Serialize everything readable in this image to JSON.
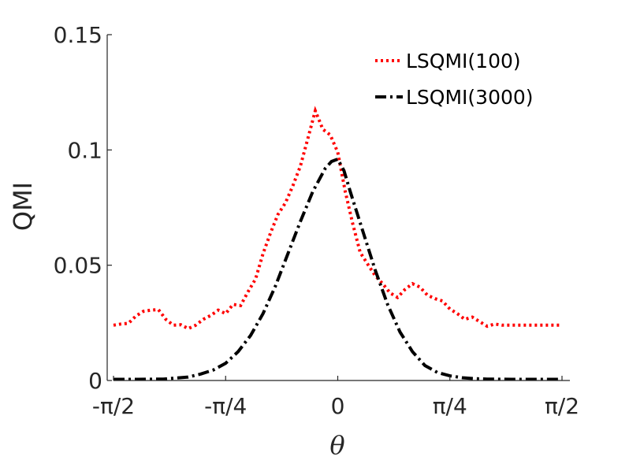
{
  "chart_data": {
    "type": "line",
    "title": "",
    "xlabel": "θ",
    "ylabel": "QMI",
    "xlim": [
      -1.5708,
      1.5708
    ],
    "ylim": [
      0,
      0.15
    ],
    "grid": false,
    "legend_position": "top-right",
    "x_ticks": [
      {
        "value": -1.5708,
        "label": "-π/2"
      },
      {
        "value": -0.7854,
        "label": "-π/4"
      },
      {
        "value": 0,
        "label": "0"
      },
      {
        "value": 0.7854,
        "label": "π/4"
      },
      {
        "value": 1.5708,
        "label": "π/2"
      }
    ],
    "y_ticks": [
      {
        "value": 0,
        "label": "0"
      },
      {
        "value": 0.05,
        "label": "0.05"
      },
      {
        "value": 0.1,
        "label": "0.1"
      },
      {
        "value": 0.15,
        "label": "0.15"
      }
    ],
    "series": [
      {
        "name": "LSQMI(100)",
        "color": "#ff0000",
        "line_style": "dotted",
        "x": [
          -1.5708,
          -1.5184,
          -1.4661,
          -1.4137,
          -1.3614,
          -1.309,
          -1.2566,
          -1.2043,
          -1.1519,
          -1.0996,
          -1.0472,
          -0.9948,
          -0.9425,
          -0.8901,
          -0.8378,
          -0.7854,
          -0.733,
          -0.6807,
          -0.6283,
          -0.576,
          -0.5236,
          -0.4712,
          -0.4189,
          -0.3665,
          -0.3142,
          -0.2618,
          -0.2094,
          -0.1571,
          -0.1047,
          -0.0524,
          0,
          0.0524,
          0.1047,
          0.1571,
          0.2094,
          0.2618,
          0.3142,
          0.3665,
          0.4189,
          0.4712,
          0.5236,
          0.576,
          0.6283,
          0.6807,
          0.733,
          0.7854,
          0.8378,
          0.8901,
          0.9425,
          0.9948,
          1.0472,
          1.0996,
          1.1519,
          1.2043,
          1.2566,
          1.309,
          1.3614,
          1.4137,
          1.4661,
          1.5184,
          1.5708
        ],
        "y": [
          0.024,
          0.0245,
          0.0248,
          0.028,
          0.03,
          0.0305,
          0.0308,
          0.0265,
          0.024,
          0.0242,
          0.0225,
          0.024,
          0.0265,
          0.0282,
          0.0305,
          0.029,
          0.033,
          0.0325,
          0.0385,
          0.044,
          0.055,
          0.064,
          0.072,
          0.077,
          0.0845,
          0.093,
          0.105,
          0.117,
          0.109,
          0.1065,
          0.099,
          0.082,
          0.068,
          0.0555,
          0.0505,
          0.0455,
          0.042,
          0.038,
          0.036,
          0.0395,
          0.042,
          0.0405,
          0.037,
          0.0355,
          0.0345,
          0.031,
          0.029,
          0.0265,
          0.0275,
          0.0255,
          0.0235,
          0.0245,
          0.024,
          0.024,
          0.024,
          0.024,
          0.024,
          0.024,
          0.024,
          0.024,
          0.024
        ]
      },
      {
        "name": "LSQMI(3000)",
        "color": "#000000",
        "line_style": "dash-dot",
        "x": [
          -1.5708,
          -1.3963,
          -1.2217,
          -1.0472,
          -0.9599,
          -0.8727,
          -0.7854,
          -0.6981,
          -0.6109,
          -0.5236,
          -0.4363,
          -0.3491,
          -0.2618,
          -0.1745,
          -0.0873,
          -0.0436,
          0,
          0.0436,
          0.0873,
          0.1745,
          0.2618,
          0.3491,
          0.4363,
          0.5236,
          0.6109,
          0.6981,
          0.7854,
          0.8727,
          0.9599,
          1.0472,
          1.2217,
          1.3963,
          1.5708
        ],
        "y": [
          0.0005,
          0.0005,
          0.0006,
          0.0015,
          0.0028,
          0.0045,
          0.0075,
          0.0125,
          0.0195,
          0.029,
          0.041,
          0.055,
          0.069,
          0.082,
          0.092,
          0.095,
          0.096,
          0.091,
          0.082,
          0.065,
          0.048,
          0.033,
          0.021,
          0.0125,
          0.0065,
          0.0035,
          0.002,
          0.0012,
          0.0008,
          0.0006,
          0.0005,
          0.0005,
          0.0005
        ]
      }
    ]
  }
}
